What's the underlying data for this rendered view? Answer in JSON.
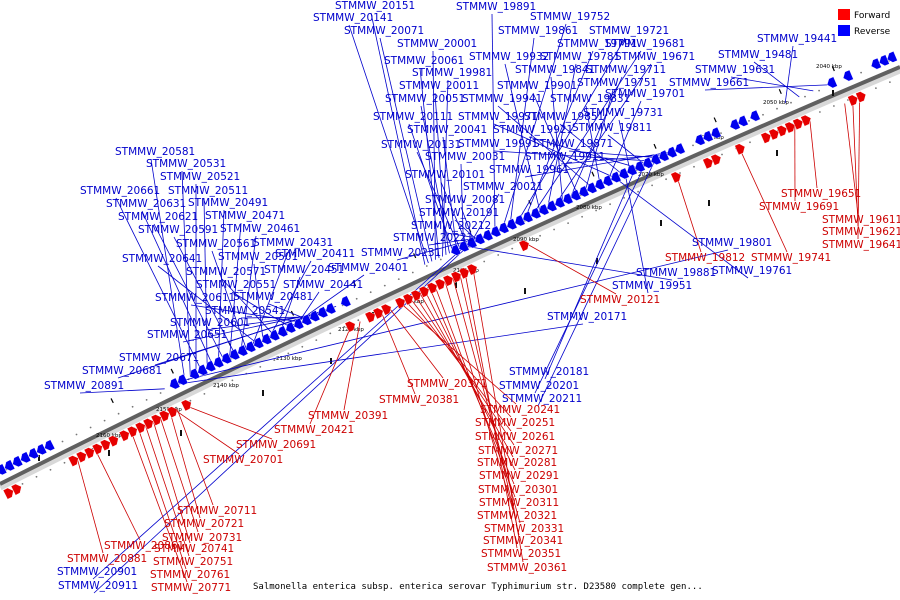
{
  "caption": "Salmonella enterica subsp. enterica serovar Typhimurium str. D23580 complete gen...",
  "legend": [
    {
      "label": "Forward",
      "color": "#ff0000"
    },
    {
      "label": "Reverse",
      "color": "#0000ff"
    }
  ],
  "colors": {
    "forward": "#e60000",
    "reverse": "#0000ee",
    "backbone": "#606060"
  },
  "axis_ticks": [
    "2040 kbp",
    "2050 kbp",
    "2060 kbp",
    "2070 kbp",
    "2080 kbp",
    "2090 kbp",
    "2100 kbp",
    "2110 kbp",
    "2120 kbp",
    "2130 kbp",
    "2140 kbp",
    "2150 kbp",
    "2160 kbp"
  ],
  "reverse_genes": [
    "STMMW_20151",
    "STMMW_20141",
    "STMMW_20071",
    "STMMW_20001",
    "STMMW_20061",
    "STMMW_19981",
    "STMMW_20011",
    "STMMW_20051",
    "STMMW_20111",
    "STMMW_20041",
    "STMMW_20131",
    "STMMW_20031",
    "STMMW_20101",
    "STMMW_20021",
    "STMMW_20081",
    "STMMW_20191",
    "STMMW_20212",
    "STMMW_20221",
    "STMMW_20231",
    "STMMW_19891",
    "STMMW_19752",
    "STMMW_19861",
    "STMMW_19721",
    "STMMW_19791",
    "STMMW_19681",
    "STMMW_19932",
    "STMMW_19781",
    "STMMW_19671",
    "STMMW_19841",
    "STMMW_19711",
    "STMMW_19901",
    "STMMW_19751",
    "STMMW_19941",
    "STMMW_19831",
    "STMMW_19701",
    "STMMW_19971",
    "STMMW_19851",
    "STMMW_19731",
    "STMMW_19921",
    "STMMW_19811",
    "STMMW_19991",
    "STMMW_19871",
    "STMMW_19911",
    "STMMW_19961",
    "STMMW_19441",
    "STMMW_19481",
    "STMMW_19631",
    "STMMW_19661",
    "STMMW_20581",
    "STMMW_20531",
    "STMMW_20521",
    "STMMW_20661",
    "STMMW_20511",
    "STMMW_20631",
    "STMMW_20491",
    "STMMW_20621",
    "STMMW_20471",
    "STMMW_20591",
    "STMMW_20461",
    "STMMW_20561",
    "STMMW_20431",
    "STMMW_20641",
    "STMMW_20501",
    "STMMW_20411",
    "STMMW_20571",
    "STMMW_20451",
    "STMMW_20401",
    "STMMW_20551",
    "STMMW_20441",
    "STMMW_20611",
    "STMMW_20481",
    "STMMW_20541",
    "STMMW_20601",
    "STMMW_20651",
    "STMMW_20671",
    "STMMW_20681",
    "STMMW_20891",
    "STMMW_20171",
    "STMMW_19801",
    "STMMW_19881",
    "STMMW_19761",
    "STMMW_19951",
    "STMMW_20181",
    "STMMW_20201",
    "STMMW_20211",
    "STMMW_20901",
    "STMMW_20911"
  ],
  "forward_genes": [
    "STMMW_19651",
    "STMMW_19691",
    "STMMW_19611",
    "STMMW_19621",
    "STMMW_19641",
    "STMMW_19812",
    "STMMW_19741",
    "STMMW_20121",
    "STMMW_20371",
    "STMMW_20381",
    "STMMW_20391",
    "STMMW_20421",
    "STMMW_20691",
    "STMMW_20701",
    "STMMW_20241",
    "STMMW_20251",
    "STMMW_20261",
    "STMMW_20271",
    "STMMW_20281",
    "STMMW_20291",
    "STMMW_20301",
    "STMMW_20311",
    "STMMW_20321",
    "STMMW_20331",
    "STMMW_20341",
    "STMMW_20351",
    "STMMW_20361",
    "STMMW_20711",
    "STMMW_20721",
    "STMMW_20731",
    "STMMW_20741",
    "STMMW_20751",
    "STMMW_20761",
    "STMMW_20771",
    "STMMW_20861",
    "STMMW_20881"
  ]
}
